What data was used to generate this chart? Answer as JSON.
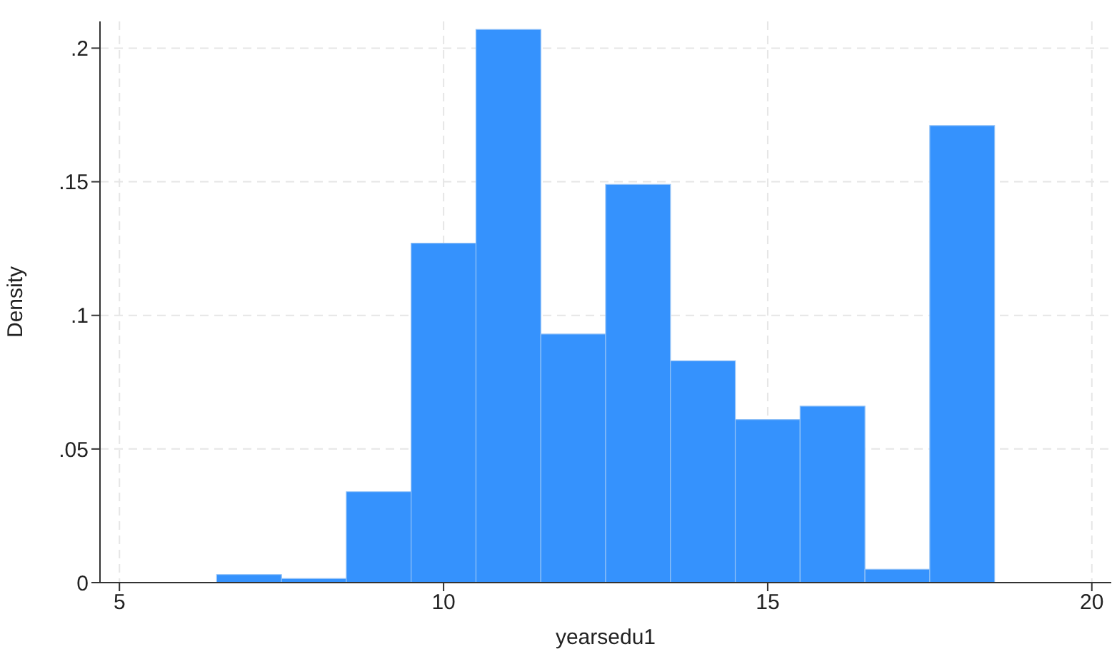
{
  "chart_data": {
    "type": "histogram",
    "xlabel": "yearsedu1",
    "ylabel": "Density",
    "bins": [
      6.5,
      7.5,
      8.5,
      9.5,
      10.5,
      11.5,
      12.5,
      13.5,
      14.5,
      15.5,
      16.5,
      17.5,
      18.5
    ],
    "values": [
      0.003,
      0.0015,
      0.034,
      0.127,
      0.207,
      0.093,
      0.149,
      0.083,
      0.061,
      0.066,
      0.005,
      0.171
    ],
    "color": "#3592fd",
    "xlim": [
      4.7,
      20.3
    ],
    "xticks": [
      5,
      10,
      15,
      20
    ],
    "ylim": [
      0,
      0.21
    ],
    "yticks": [
      0,
      {
        "value": 0.05,
        "label": ".05"
      },
      {
        "value": 0.1,
        "label": ".1"
      },
      {
        "value": 0.15,
        "label": ".15"
      },
      {
        "value": 0.2,
        "label": ".2"
      }
    ],
    "grid": true
  }
}
